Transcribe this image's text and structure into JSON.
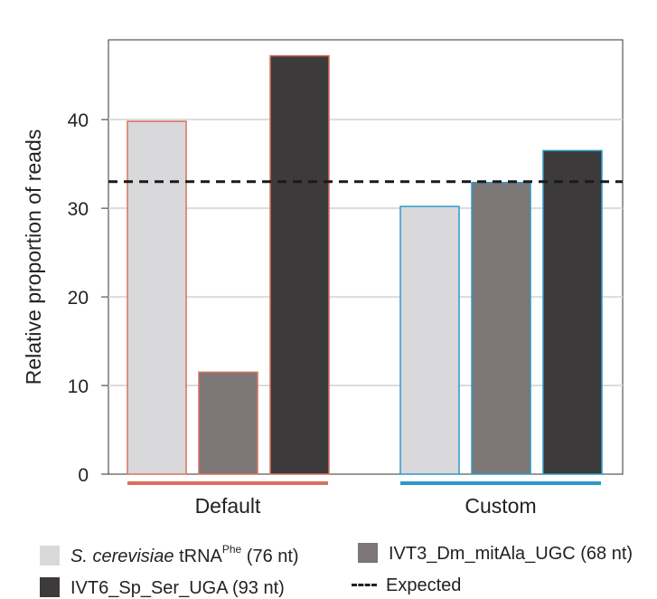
{
  "chart_data": {
    "type": "bar",
    "ylabel": "Relative proportion of reads",
    "ylim": [
      0,
      49
    ],
    "yticks": [
      0,
      10,
      20,
      30,
      40
    ],
    "grid": true,
    "expected": 33,
    "groups": [
      {
        "name": "Default",
        "accent": "#d9705a",
        "values": [
          39.8,
          11.5,
          47.2
        ]
      },
      {
        "name": "Custom",
        "accent": "#2a9bc9",
        "values": [
          30.2,
          32.9,
          36.5
        ]
      }
    ],
    "series": [
      {
        "name_italic": "S. cerevisiae",
        "name_main": "tRNA",
        "name_sup": "Phe",
        "name_suffix": "(76 nt)",
        "color": "#d9d9db"
      },
      {
        "name": "IVT3_Dm_mitAla_UGC (68 nt)",
        "color": "#7c7676"
      },
      {
        "name": "IVT6_Sp_Ser_UGA (93 nt)",
        "color": "#3d3a3c"
      }
    ],
    "expected_label": "Expected"
  }
}
